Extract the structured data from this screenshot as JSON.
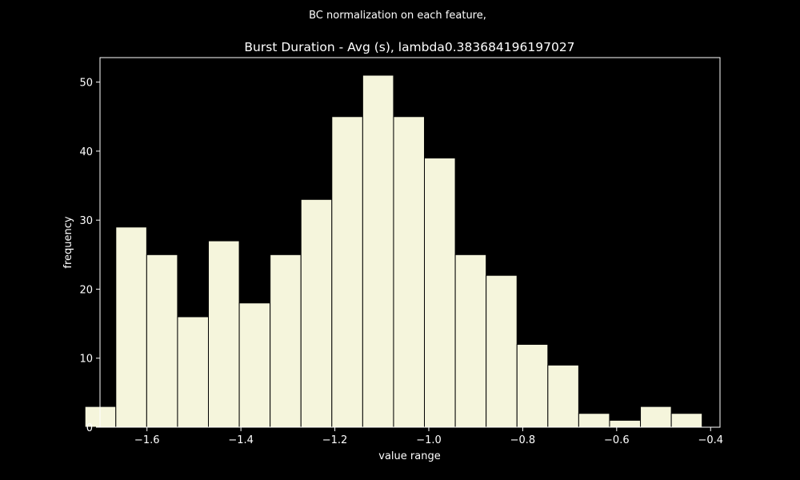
{
  "suptitle": "BC normalization on each feature,",
  "chart_data": {
    "type": "bar",
    "title": "Burst Duration - Avg (s), lambda0.383684196197027",
    "xlabel": "value range",
    "ylabel": "frequency",
    "bin_edges": [
      -1.732,
      -1.6663,
      -1.6006,
      -1.5349,
      -1.4692,
      -1.4035,
      -1.3378,
      -1.2721,
      -1.2064,
      -1.1407,
      -1.075,
      -1.0093,
      -0.9436,
      -0.8779,
      -0.8122,
      -0.7465,
      -0.6808,
      -0.6151,
      -0.5494,
      -0.4837,
      -0.418
    ],
    "values": [
      3,
      29,
      25,
      16,
      27,
      18,
      25,
      33,
      45,
      51,
      45,
      39,
      25,
      22,
      12,
      9,
      2,
      1,
      3,
      2
    ],
    "xlim": [
      -1.7,
      -0.38
    ],
    "ylim": [
      0,
      53.55
    ],
    "xticks": [
      -1.6,
      -1.4,
      -1.2,
      -1.0,
      -0.8,
      -0.6,
      -0.4
    ],
    "xtick_labels": [
      "−1.6",
      "−1.4",
      "−1.2",
      "−1.0",
      "−0.8",
      "−0.6",
      "−0.4"
    ],
    "yticks": [
      0,
      10,
      20,
      30,
      40,
      50
    ],
    "ytick_labels": [
      "0",
      "10",
      "20",
      "30",
      "40",
      "50"
    ],
    "grid": false,
    "colors": {
      "background": "#000000",
      "bar_fill": "#f5f5dc",
      "bar_edge": "#000000",
      "axes": "#ffffff",
      "text": "#ffffff"
    }
  }
}
